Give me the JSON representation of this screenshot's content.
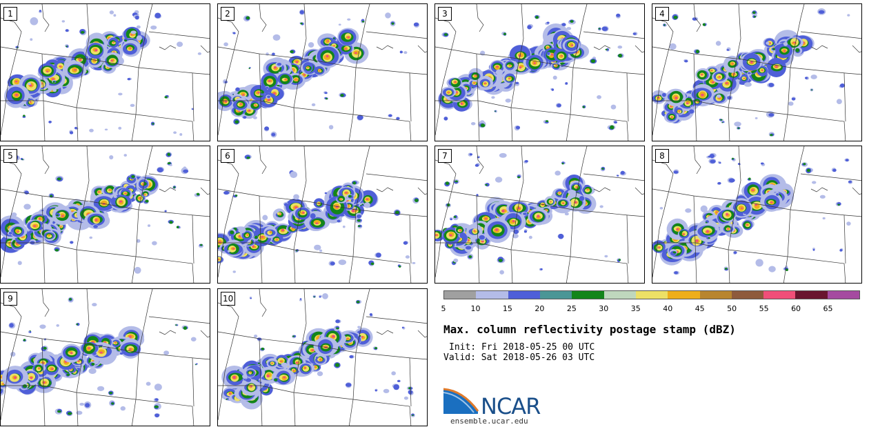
{
  "panels": [
    {
      "label": "1"
    },
    {
      "label": "2"
    },
    {
      "label": "3"
    },
    {
      "label": "4"
    },
    {
      "label": "5"
    },
    {
      "label": "6"
    },
    {
      "label": "7"
    },
    {
      "label": "8"
    },
    {
      "label": "9"
    },
    {
      "label": "10"
    }
  ],
  "colorbar": {
    "colors": [
      "#a0a0a0",
      "#b4bce8",
      "#4f5fd8",
      "#4a9696",
      "#13851a",
      "#bfd7bd",
      "#ede066",
      "#eeae1a",
      "#b8852f",
      "#8e5a3c",
      "#f04f79",
      "#69152f",
      "#a54aa0"
    ],
    "ticks": [
      "5",
      "10",
      "15",
      "20",
      "25",
      "30",
      "35",
      "40",
      "45",
      "50",
      "55",
      "60",
      "65"
    ]
  },
  "text": {
    "title": "Max. column reflectivity postage stamp (dBZ)",
    "init": "Init: Fri 2018-05-25 00 UTC",
    "valid": "Valid: Sat 2018-05-26 03 UTC",
    "logo": "NCAR",
    "url": "ensemble.ucar.edu"
  }
}
